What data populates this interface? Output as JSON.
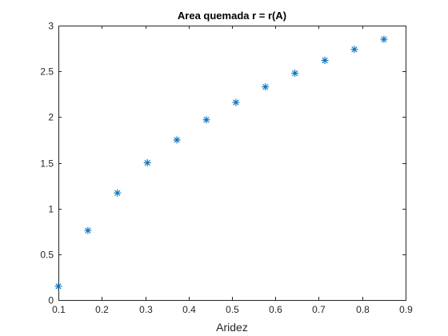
{
  "chart_data": {
    "type": "scatter",
    "title": "Area quemada r = r(A)",
    "xlabel": "Aridez",
    "ylabel": "",
    "xlim": [
      0.1,
      0.9
    ],
    "ylim": [
      0,
      3
    ],
    "xticks": [
      "0.1",
      "0.2",
      "0.3",
      "0.4",
      "0.5",
      "0.6",
      "0.7",
      "0.8",
      "0.9"
    ],
    "yticks": [
      "0",
      "0.5",
      "1",
      "1.5",
      "2",
      "2.5",
      "3"
    ],
    "grid": false,
    "marker": "asterisk",
    "color": "#0072BD",
    "series": [
      {
        "x": [
          0.1,
          0.168,
          0.236,
          0.305,
          0.373,
          0.441,
          0.509,
          0.577,
          0.645,
          0.714,
          0.782,
          0.85
        ],
        "y": [
          0.15,
          0.76,
          1.17,
          1.5,
          1.75,
          1.97,
          2.16,
          2.33,
          2.48,
          2.62,
          2.74,
          2.85
        ]
      }
    ]
  }
}
